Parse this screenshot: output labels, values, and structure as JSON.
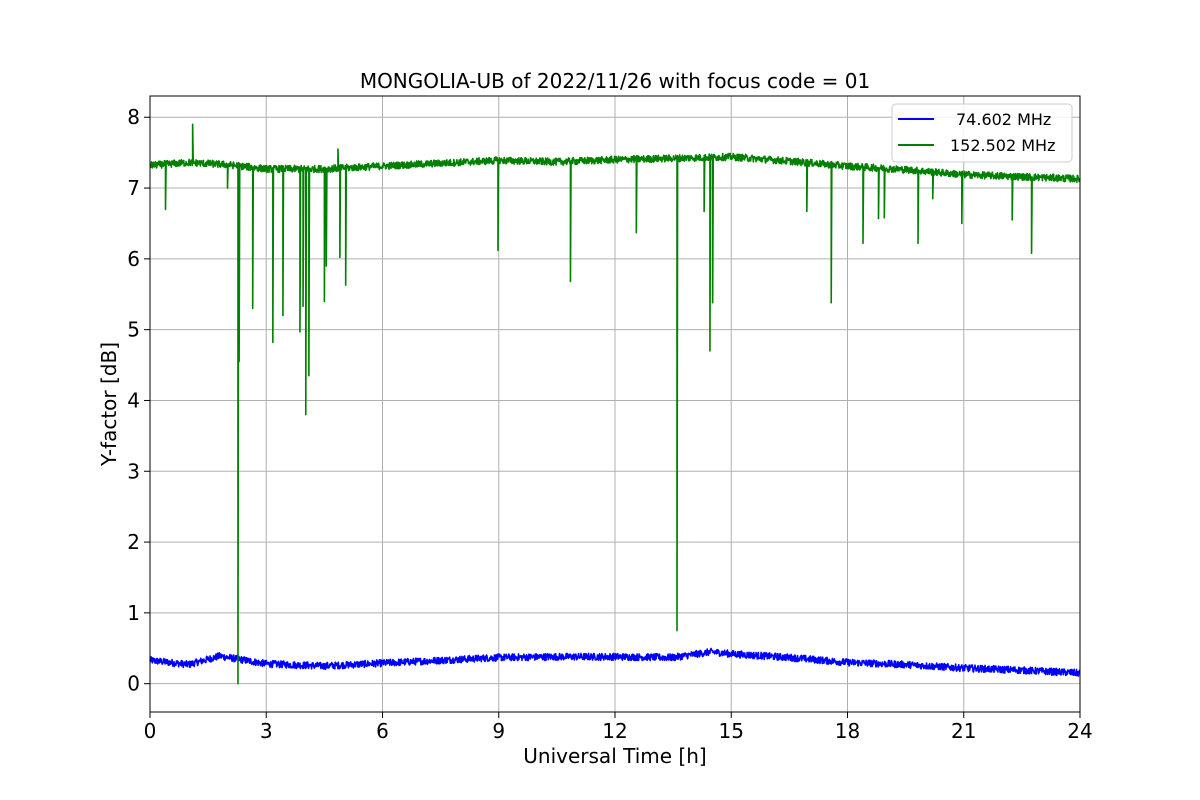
{
  "chart_data": {
    "type": "line",
    "title": "MONGOLIA-UB of 2022/11/26 with focus code = 01",
    "xlabel": "Universal Time [h]",
    "ylabel": "Y-factor [dB]",
    "xlim": [
      0,
      24
    ],
    "ylim": [
      -0.4,
      8.3
    ],
    "xticks": [
      0,
      3,
      6,
      9,
      12,
      15,
      18,
      21,
      24
    ],
    "yticks": [
      0,
      1,
      2,
      3,
      4,
      5,
      6,
      7,
      8
    ],
    "grid": true,
    "legend_position": "top-right",
    "series": [
      {
        "name": "74.602 MHz",
        "color": "#0000ff",
        "baseline": [
          [
            0,
            0.33
          ],
          [
            1,
            0.27
          ],
          [
            1.8,
            0.39
          ],
          [
            3,
            0.28
          ],
          [
            4.5,
            0.25
          ],
          [
            6,
            0.29
          ],
          [
            7.5,
            0.33
          ],
          [
            9,
            0.37
          ],
          [
            10.5,
            0.38
          ],
          [
            12,
            0.38
          ],
          [
            13.5,
            0.37
          ],
          [
            14.5,
            0.45
          ],
          [
            15,
            0.42
          ],
          [
            16.5,
            0.37
          ],
          [
            18,
            0.3
          ],
          [
            19.5,
            0.27
          ],
          [
            21,
            0.22
          ],
          [
            22.5,
            0.19
          ],
          [
            24,
            0.15
          ]
        ],
        "noise": 0.05,
        "spikes": []
      },
      {
        "name": "152.502 MHz",
        "color": "#008000",
        "baseline": [
          [
            0,
            7.32
          ],
          [
            1,
            7.36
          ],
          [
            2,
            7.33
          ],
          [
            3,
            7.27
          ],
          [
            4.5,
            7.27
          ],
          [
            6,
            7.31
          ],
          [
            7.5,
            7.35
          ],
          [
            9,
            7.39
          ],
          [
            10.5,
            7.37
          ],
          [
            12,
            7.4
          ],
          [
            13.5,
            7.42
          ],
          [
            15,
            7.44
          ],
          [
            16.5,
            7.38
          ],
          [
            18,
            7.31
          ],
          [
            19.5,
            7.26
          ],
          [
            21,
            7.19
          ],
          [
            22.5,
            7.16
          ],
          [
            24,
            7.13
          ]
        ],
        "noise": 0.05,
        "spikes": [
          [
            0.4,
            6.7
          ],
          [
            1.1,
            7.9
          ],
          [
            2.0,
            7.0
          ],
          [
            2.27,
            0.0
          ],
          [
            2.3,
            4.55
          ],
          [
            2.65,
            5.3
          ],
          [
            3.17,
            4.82
          ],
          [
            3.43,
            5.2
          ],
          [
            3.87,
            4.97
          ],
          [
            3.95,
            5.33
          ],
          [
            4.02,
            3.8
          ],
          [
            4.1,
            4.35
          ],
          [
            4.5,
            5.4
          ],
          [
            4.55,
            5.9
          ],
          [
            4.85,
            7.55
          ],
          [
            4.9,
            6.02
          ],
          [
            5.05,
            5.63
          ],
          [
            8.98,
            6.12
          ],
          [
            10.85,
            5.68
          ],
          [
            12.55,
            6.37
          ],
          [
            13.6,
            0.75
          ],
          [
            14.3,
            6.67
          ],
          [
            14.45,
            4.7
          ],
          [
            14.52,
            5.38
          ],
          [
            16.95,
            6.67
          ],
          [
            17.58,
            5.38
          ],
          [
            18.4,
            6.22
          ],
          [
            18.8,
            6.57
          ],
          [
            18.95,
            6.58
          ],
          [
            19.82,
            6.22
          ],
          [
            20.2,
            6.85
          ],
          [
            20.95,
            6.5
          ],
          [
            22.25,
            6.55
          ],
          [
            22.75,
            6.08
          ]
        ]
      }
    ]
  }
}
